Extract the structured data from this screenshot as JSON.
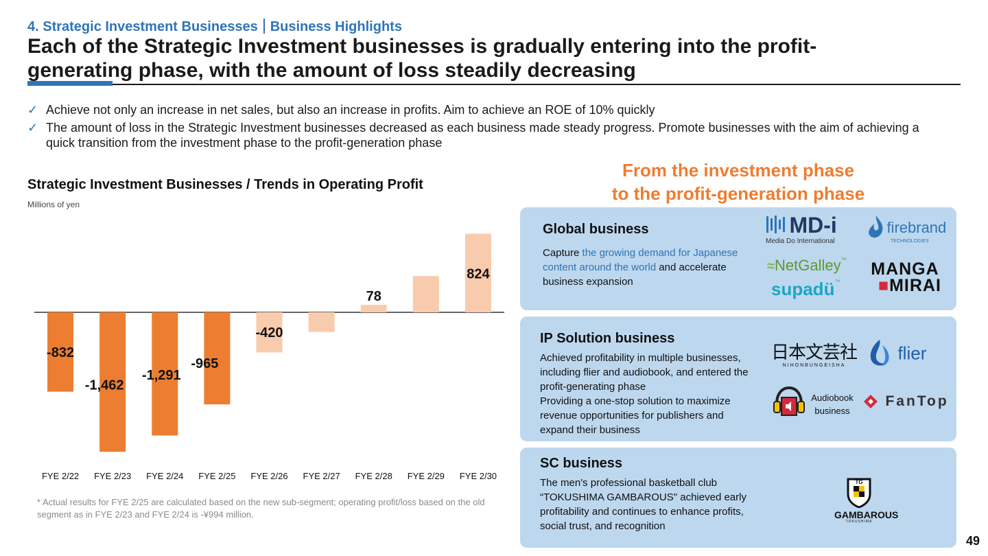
{
  "header": {
    "section": "4. Strategic Investment Businesses",
    "subsection": "Business Highlights",
    "title": "Each of the Strategic Investment businesses is gradually entering into the profit-generating phase, with the amount of loss steadily decreasing"
  },
  "bullets": [
    {
      "icon": "check-icon",
      "mark": "✓",
      "text": "Achieve not only an increase in net sales, but also an increase in profits. Aim to achieve an ROE of 10% quickly"
    },
    {
      "icon": "check-icon",
      "mark": "✓",
      "text": "The amount of loss in the Strategic Investment businesses decreased as each business made steady progress. Promote businesses with the aim of achieving a quick transition from the investment phase to the profit-generation phase"
    }
  ],
  "chart": {
    "title": "Strategic Investment Businesses / Trends in Operating Profit",
    "unit": "Millions of yen",
    "note": "* Actual results for FYE 2/25 are calculated based on the new sub-segment; operating profit/loss based on the old segment as in FYE 2/23 and FYE 2/24 is -¥994 million."
  },
  "chart_data": {
    "type": "bar",
    "title": "Strategic Investment Businesses / Trends in Operating Profit",
    "xlabel": "",
    "ylabel": "Millions of yen",
    "ylim": [
      -1500,
      850
    ],
    "grid": false,
    "categories": [
      "FYE 2/22",
      "FYE 2/23",
      "FYE 2/24",
      "FYE 2/25",
      "FYE 2/26",
      "FYE 2/27",
      "FYE 2/28",
      "FYE 2/29",
      "FYE 2/30"
    ],
    "values": [
      -832,
      -1462,
      -1291,
      -965,
      -420,
      -205,
      78,
      380,
      824
    ],
    "labels": [
      "-832",
      "-1,462",
      "-1,291",
      "-965",
      "-420",
      "",
      "78",
      "",
      "824"
    ],
    "bar_kind": [
      "actual",
      "actual",
      "actual",
      "actual",
      "plan",
      "plan",
      "plan",
      "plan",
      "plan"
    ],
    "colors": {
      "actual": "#ed7d31",
      "plan": "#f8cbad"
    }
  },
  "phase_heading": {
    "line1": "From the investment phase",
    "line2": "to the profit-generation phase",
    "color": "#ed7d31"
  },
  "cards": {
    "global": {
      "title": "Global business",
      "body_1": "Capture ",
      "body_highlight": "the growing demand for Japanese content around the world",
      "body_2": " and accelerate business expansion",
      "logos": {
        "mdi": "MD-i",
        "mdi_sub": "Media Do International",
        "firebrand": "firebrand",
        "firebrand_sub": "TECHNOLOGIES",
        "netgalley": "NetGalley",
        "tm": "™",
        "supadu": "supadü",
        "manga": "MANGA",
        "mirai": "MIRAI"
      }
    },
    "ip": {
      "title": "IP Solution business",
      "body": "Achieved profitability in multiple businesses, including flier and audiobook, and entered the profit-generating phase\nProviding a one-stop solution to maximize revenue opportunities for publishers and expand their business",
      "logos": {
        "nihon": "日本文芸社",
        "nihon_sub": "NIHONBUNGEISHA",
        "flier": "flier",
        "audiobook": "Audiobook\nbusiness",
        "fantop": "FanTop"
      }
    },
    "sc": {
      "title": "SC business",
      "body": "The men's professional basketball club “TOKUSHIMA GAMBAROUS\" achieved early profitability and continues to enhance profits, social trust, and recognition",
      "logos": {
        "tg": "TG",
        "gambarous": "GAMBAROUS",
        "tokushima": "TOKUSHIMA"
      }
    }
  },
  "page_number": "49"
}
